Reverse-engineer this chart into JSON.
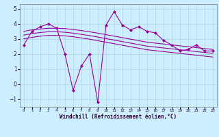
{
  "xlabel": "Windchill (Refroidissement éolien,°C)",
  "x": [
    0,
    1,
    2,
    3,
    4,
    5,
    6,
    7,
    8,
    9,
    10,
    11,
    12,
    13,
    14,
    15,
    16,
    17,
    18,
    19,
    20,
    21,
    22,
    23
  ],
  "y_main": [
    2.6,
    3.5,
    3.8,
    4.0,
    3.7,
    2.0,
    -0.4,
    1.2,
    2.0,
    -1.2,
    3.9,
    4.8,
    3.9,
    3.6,
    3.8,
    3.5,
    3.4,
    2.9,
    2.6,
    2.2,
    2.3,
    2.6,
    2.2,
    2.2
  ],
  "y_line1": [
    3.5,
    3.6,
    3.65,
    3.7,
    3.7,
    3.68,
    3.62,
    3.55,
    3.47,
    3.38,
    3.28,
    3.18,
    3.08,
    2.98,
    2.88,
    2.78,
    2.72,
    2.66,
    2.6,
    2.54,
    2.48,
    2.42,
    2.36,
    2.3
  ],
  "y_line2": [
    3.25,
    3.35,
    3.42,
    3.47,
    3.47,
    3.44,
    3.38,
    3.3,
    3.22,
    3.12,
    3.02,
    2.92,
    2.82,
    2.72,
    2.62,
    2.52,
    2.46,
    2.4,
    2.34,
    2.28,
    2.22,
    2.16,
    2.1,
    2.04
  ],
  "y_line3": [
    3.0,
    3.1,
    3.18,
    3.23,
    3.23,
    3.2,
    3.14,
    3.06,
    2.98,
    2.88,
    2.78,
    2.68,
    2.58,
    2.48,
    2.38,
    2.28,
    2.22,
    2.16,
    2.1,
    2.04,
    1.98,
    1.92,
    1.86,
    1.8
  ],
  "line_color": "#990099",
  "bg_color": "#cceeff",
  "grid_color": "#aadddd",
  "ylim": [
    -1.5,
    5.3
  ],
  "xlim": [
    -0.5,
    23.5
  ],
  "yticks": [
    -1,
    0,
    1,
    2,
    3,
    4,
    5
  ]
}
